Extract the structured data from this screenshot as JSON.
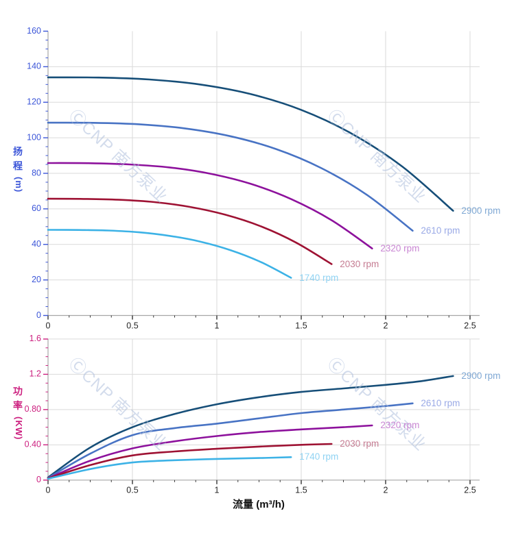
{
  "page": {
    "background": "#ffffff"
  },
  "watermark": {
    "text": "ⒸCNP 南方泵业",
    "color": "rgba(175,192,220,0.55)"
  },
  "axes": {
    "flow_label": "流量 (m³/h)",
    "head_label_cn": "扬程",
    "head_unit": "(m)",
    "power_label_cn": "功率",
    "power_unit": "(KW)"
  },
  "chart_data": [
    {
      "type": "line",
      "name": "head",
      "title": "",
      "xlabel": "流量 (m³/h)",
      "ylabel": "扬程(m)",
      "xlim": [
        0,
        2.5
      ],
      "ylim": [
        0,
        160
      ],
      "x_tick_values": [
        0,
        0.5,
        1,
        1.5,
        2,
        2.5
      ],
      "x_tick_labels": [
        "0",
        "0.5",
        "1",
        "1.5",
        "2",
        "2.5"
      ],
      "x_minor_step": 0.125,
      "y_tick_values": [
        0,
        20,
        40,
        60,
        80,
        100,
        120,
        140,
        160
      ],
      "y_tick_labels": [
        "0",
        "20",
        "40",
        "60",
        "80",
        "100",
        "120",
        "140",
        "160"
      ],
      "y_minor_step": 5,
      "grid": true,
      "grid_color": "#dadada",
      "axis_color": "#a6a6a6",
      "y_tick_color": "#3b55d8",
      "x_tick_label_color": "#262626",
      "series_label_placement": "at-curve-end",
      "series": [
        {
          "name": "2900 rpm",
          "rpm": 2900,
          "color": "#164e78",
          "label_color": "#7fa8d4",
          "points": [
            [
              0,
              134
            ],
            [
              0.3,
              133.9
            ],
            [
              0.6,
              132.8
            ],
            [
              0.9,
              130
            ],
            [
              1.2,
              124.6
            ],
            [
              1.5,
              115.7
            ],
            [
              1.8,
              102.3
            ],
            [
              2.1,
              83.7
            ],
            [
              2.4,
              58.9
            ]
          ]
        },
        {
          "name": "2610 rpm",
          "rpm": 2610,
          "color": "#4873c4",
          "label_color": "#9aaae6",
          "points": [
            [
              0,
              108.5
            ],
            [
              0.27,
              108.4
            ],
            [
              0.54,
              107.6
            ],
            [
              0.81,
              105.3
            ],
            [
              1.08,
              100.9
            ],
            [
              1.35,
              93.7
            ],
            [
              1.62,
              82.9
            ],
            [
              1.89,
              67.8
            ],
            [
              2.16,
              47.7
            ]
          ]
        },
        {
          "name": "2320 rpm",
          "rpm": 2320,
          "color": "#8d119c",
          "label_color": "#c986d3",
          "points": [
            [
              0,
              85.8
            ],
            [
              0.24,
              85.7
            ],
            [
              0.48,
              85
            ],
            [
              0.72,
              83.3
            ],
            [
              0.96,
              79.8
            ],
            [
              1.2,
              74.1
            ],
            [
              1.44,
              65.5
            ],
            [
              1.68,
              53.6
            ],
            [
              1.92,
              37.7
            ]
          ]
        },
        {
          "name": "2030 rpm",
          "rpm": 2030,
          "color": "#9e1233",
          "label_color": "#c57c92",
          "points": [
            [
              0,
              65.7
            ],
            [
              0.21,
              65.6
            ],
            [
              0.42,
              65.1
            ],
            [
              0.63,
              63.8
            ],
            [
              0.84,
              61.1
            ],
            [
              1.05,
              56.7
            ],
            [
              1.26,
              50.2
            ],
            [
              1.47,
              41
            ],
            [
              1.68,
              28.9
            ]
          ]
        },
        {
          "name": "1740 rpm",
          "rpm": 1740,
          "color": "#3cb2e6",
          "label_color": "#90d3f3",
          "points": [
            [
              0,
              48.2
            ],
            [
              0.18,
              48.1
            ],
            [
              0.36,
              47.8
            ],
            [
              0.54,
              46.8
            ],
            [
              0.72,
              44.8
            ],
            [
              0.9,
              41.6
            ],
            [
              1.08,
              36.8
            ],
            [
              1.26,
              30.1
            ],
            [
              1.44,
              21.2
            ]
          ]
        }
      ]
    },
    {
      "type": "line",
      "name": "power",
      "title": "",
      "xlabel": "流量 (m³/h)",
      "ylabel": "功率(KW)",
      "xlim": [
        0,
        2.5
      ],
      "ylim": [
        0,
        1.6
      ],
      "x_tick_values": [
        0,
        0.5,
        1,
        1.5,
        2,
        2.5
      ],
      "x_tick_labels": [
        "0",
        "0.5",
        "1",
        "1.5",
        "2",
        "2.5"
      ],
      "x_minor_step": 0.125,
      "y_tick_values": [
        0,
        0.4,
        0.8,
        1.2,
        1.6
      ],
      "y_tick_labels": [
        "0",
        "0.40",
        "0.80",
        "1.2",
        "1.6"
      ],
      "y_minor_step": 0.1,
      "grid": true,
      "grid_color": "#dadada",
      "axis_color": "#a6a6a6",
      "y_tick_color": "#cc1f7f",
      "x_tick_label_color": "#262626",
      "series_label_placement": "at-curve-end",
      "series": [
        {
          "name": "2900 rpm",
          "rpm": 2900,
          "color": "#164e78",
          "label_color": "#7fa8d4",
          "points": [
            [
              0,
              0.03
            ],
            [
              0.25,
              0.37
            ],
            [
              0.5,
              0.6
            ],
            [
              0.75,
              0.75
            ],
            [
              1,
              0.86
            ],
            [
              1.25,
              0.94
            ],
            [
              1.5,
              1
            ],
            [
              1.75,
              1.04
            ],
            [
              2,
              1.08
            ],
            [
              2.2,
              1.12
            ],
            [
              2.4,
              1.18
            ]
          ]
        },
        {
          "name": "2610 rpm",
          "rpm": 2610,
          "color": "#4873c4",
          "label_color": "#9aaae6",
          "points": [
            [
              0,
              0.025
            ],
            [
              0.25,
              0.3
            ],
            [
              0.5,
              0.51
            ],
            [
              0.75,
              0.59
            ],
            [
              1,
              0.64
            ],
            [
              1.25,
              0.7
            ],
            [
              1.5,
              0.76
            ],
            [
              1.75,
              0.8
            ],
            [
              2,
              0.84
            ],
            [
              2.16,
              0.87
            ]
          ]
        },
        {
          "name": "2320 rpm",
          "rpm": 2320,
          "color": "#8d119c",
          "label_color": "#c986d3",
          "points": [
            [
              0,
              0.02
            ],
            [
              0.25,
              0.22
            ],
            [
              0.5,
              0.36
            ],
            [
              0.75,
              0.44
            ],
            [
              1,
              0.5
            ],
            [
              1.25,
              0.545
            ],
            [
              1.5,
              0.575
            ],
            [
              1.75,
              0.6
            ],
            [
              1.92,
              0.62
            ]
          ]
        },
        {
          "name": "2030 rpm",
          "rpm": 2030,
          "color": "#9e1233",
          "label_color": "#c57c92",
          "points": [
            [
              0,
              0.02
            ],
            [
              0.25,
              0.17
            ],
            [
              0.5,
              0.28
            ],
            [
              0.75,
              0.325
            ],
            [
              1,
              0.355
            ],
            [
              1.25,
              0.38
            ],
            [
              1.5,
              0.4
            ],
            [
              1.68,
              0.41
            ]
          ]
        },
        {
          "name": "1740 rpm",
          "rpm": 1740,
          "color": "#3cb2e6",
          "label_color": "#90d3f3",
          "points": [
            [
              0,
              0.015
            ],
            [
              0.25,
              0.125
            ],
            [
              0.5,
              0.2
            ],
            [
              0.75,
              0.225
            ],
            [
              1,
              0.24
            ],
            [
              1.25,
              0.25
            ],
            [
              1.44,
              0.26
            ]
          ]
        }
      ]
    }
  ]
}
